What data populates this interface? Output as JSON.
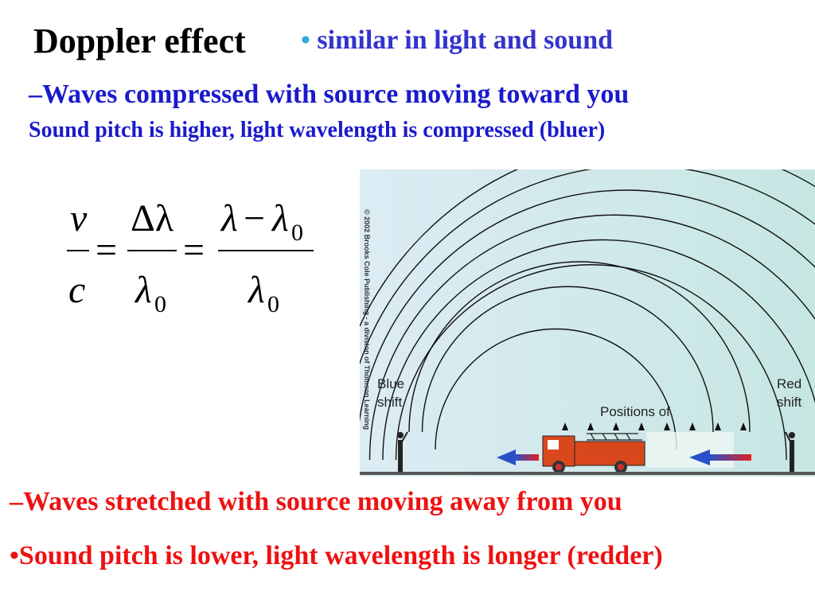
{
  "title": "Doppler effect",
  "bullet1": {
    "marker": "•",
    "text": "similar in light and sound"
  },
  "line2": "–Waves compressed with source moving toward you",
  "line3": "Sound pitch is higher, light wavelength is compressed (bluer)",
  "equation": {
    "v": "v",
    "c": "c",
    "delta_lambda": "Δλ",
    "lambda0": "λ",
    "sub0": "0",
    "lambda": "λ",
    "minus": "−",
    "equals": "="
  },
  "figure": {
    "copyright": "© 2002 Brooks Cole Publishing - a division of Thomson Learning",
    "blue_label": [
      "Blue",
      "shift"
    ],
    "red_label": [
      "Red",
      "shift"
    ],
    "positions_label": "Positions of",
    "colors": {
      "background": "#cfe8ea",
      "truck": "#d9481c",
      "arrow_blue": "#2a50c8",
      "arrow_red": "#e02020"
    }
  },
  "line4": "–Waves stretched with source moving away from you",
  "line5": "•Sound pitch is lower, light wavelength is longer (redder)"
}
